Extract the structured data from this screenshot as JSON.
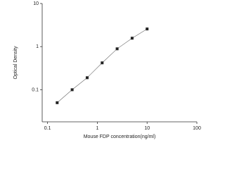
{
  "chart_data": {
    "type": "scatter",
    "x_label": "Mouse FDP concentration(ng/ml)",
    "y_label": "Optical Density",
    "x": [
      0.156,
      0.312,
      0.625,
      1.25,
      2.5,
      5,
      10
    ],
    "series": [
      {
        "color": "#222222",
        "values": [
          0.05,
          0.1,
          0.19,
          0.42,
          0.89,
          1.57,
          2.57
        ]
      }
    ],
    "connect": true,
    "x_log": true,
    "y_log": true,
    "xlim": [
      0.078,
      100
    ],
    "ylim": [
      0.018,
      10
    ],
    "xticks": [
      0.1,
      1,
      10,
      100
    ],
    "yticks": [
      0.1,
      1,
      10
    ]
  }
}
